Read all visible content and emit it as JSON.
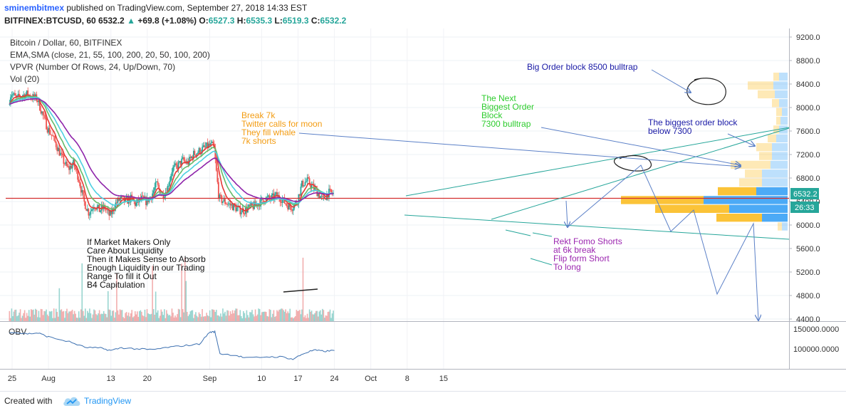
{
  "header": {
    "author": "sminembitmex",
    "published": "published on TradingView.com, September 27, 2018 14:33 EST",
    "symbol": "BITFINEX:BTCUSD, 60",
    "price": "6532.2",
    "change": "+69.8 (+1.08%)",
    "o_label": "O:",
    "o": "6527.3",
    "h_label": "H:",
    "h": "6535.3",
    "l_label": "L:",
    "l": "6519.3",
    "c_label": "C:",
    "c": "6532.2"
  },
  "legend": {
    "title": "Bitcoin / Dollar, 60, BITFINEX",
    "ema": "EMA,SMA (close, 21, 55, 100, 200, 20, 50, 100, 200)",
    "vpvr": "VPVR (Number Of Rows, 24, Up/Down, 70)",
    "vol": "Vol (20)",
    "obv": "OBV"
  },
  "price_badge": "6532.2",
  "countdown_badge": "26:33",
  "annotations": {
    "big_order": "Big Order block 8500 bulltrap",
    "next_biggest": [
      "The Next",
      "Biggest Order",
      "Block",
      "7300 bulltrap"
    ],
    "break7k": [
      "Break 7k",
      "Twitter calls for moon",
      "They fill whale",
      "7k shorts"
    ],
    "biggest_block": [
      "The biggest order block",
      "below 7300"
    ],
    "rekt": [
      "Rekt Fomo Shorts",
      "at 6k break",
      "Flip form Short",
      "To long"
    ],
    "market_makers": [
      "If Market Makers Only",
      "Care About Liquidity",
      "Then it Makes Sense to Absorb",
      "Enough Liquidity in our Trading",
      "Range To fill it Out",
      "B4 Capitulation"
    ]
  },
  "footer": {
    "created_with": "Created with",
    "brand": "TradingView"
  },
  "colors": {
    "up": "#26a69a",
    "down": "#ef5350",
    "ema21": "#e53935",
    "ema55": "#66bb6a",
    "ema100": "#4dd0e1",
    "ema200": "#8e24aa",
    "hline": "#d32f2f",
    "vp_blue": "#42a5f5",
    "vp_yellow": "#fbc02d",
    "obv": "#3b6fb0",
    "arrow": "#5b80c7"
  },
  "chart_data": {
    "type": "line",
    "x_ticks": [
      {
        "label": "25",
        "day": 25
      },
      {
        "label": "Aug",
        "day": 32
      },
      {
        "label": "13",
        "day": 44
      },
      {
        "label": "20",
        "day": 51
      },
      {
        "label": "Sep",
        "day": 63
      },
      {
        "label": "10",
        "day": 73
      },
      {
        "label": "17",
        "day": 80
      },
      {
        "label": "24",
        "day": 87
      },
      {
        "label": "Oct",
        "day": 94
      },
      {
        "label": "8",
        "day": 101
      },
      {
        "label": "15",
        "day": 108
      }
    ],
    "y_ticks": [
      9200,
      8800,
      8400,
      8000,
      7600,
      7200,
      6800,
      6400,
      6000,
      5600,
      5200,
      4800,
      4400
    ],
    "y_tick_labels": [
      "9200.0",
      "8800.0",
      "8400.0",
      "8000.0",
      "7600.0",
      "7200.0",
      "6800.0",
      "6400.0",
      "6000.0",
      "5600.0",
      "5200.0",
      "4800.0",
      "4400.0"
    ],
    "ylim": [
      4400,
      9350
    ],
    "price_series": [
      {
        "day": 24.5,
        "value": 8050
      },
      {
        "day": 25,
        "value": 8250
      },
      {
        "day": 26,
        "value": 8150
      },
      {
        "day": 27,
        "value": 8200
      },
      {
        "day": 28,
        "value": 8230
      },
      {
        "day": 29,
        "value": 8180
      },
      {
        "day": 30,
        "value": 8150
      },
      {
        "day": 31,
        "value": 7900
      },
      {
        "day": 32,
        "value": 7650
      },
      {
        "day": 33,
        "value": 7500
      },
      {
        "day": 34,
        "value": 7300
      },
      {
        "day": 35,
        "value": 7100
      },
      {
        "day": 36,
        "value": 6950
      },
      {
        "day": 37,
        "value": 7050
      },
      {
        "day": 38,
        "value": 6800
      },
      {
        "day": 39,
        "value": 6400
      },
      {
        "day": 40,
        "value": 6200
      },
      {
        "day": 41,
        "value": 6350
      },
      {
        "day": 42,
        "value": 6250
      },
      {
        "day": 43,
        "value": 6300
      },
      {
        "day": 44,
        "value": 6150
      },
      {
        "day": 45,
        "value": 6350
      },
      {
        "day": 46,
        "value": 6450
      },
      {
        "day": 47,
        "value": 6400
      },
      {
        "day": 48,
        "value": 6450
      },
      {
        "day": 49,
        "value": 6350
      },
      {
        "day": 50,
        "value": 6450
      },
      {
        "day": 51,
        "value": 6400
      },
      {
        "day": 52,
        "value": 6500
      },
      {
        "day": 53,
        "value": 6700
      },
      {
        "day": 54,
        "value": 6500
      },
      {
        "day": 55,
        "value": 6600
      },
      {
        "day": 56,
        "value": 6950
      },
      {
        "day": 57,
        "value": 7000
      },
      {
        "day": 58,
        "value": 7100
      },
      {
        "day": 59,
        "value": 7050
      },
      {
        "day": 60,
        "value": 7200
      },
      {
        "day": 61,
        "value": 7250
      },
      {
        "day": 62,
        "value": 7300
      },
      {
        "day": 63,
        "value": 7350
      },
      {
        "day": 64,
        "value": 7350
      },
      {
        "day": 65,
        "value": 6450
      },
      {
        "day": 66,
        "value": 6400
      },
      {
        "day": 67,
        "value": 6350
      },
      {
        "day": 68,
        "value": 6300
      },
      {
        "day": 69,
        "value": 6250
      },
      {
        "day": 70,
        "value": 6250
      },
      {
        "day": 71,
        "value": 6300
      },
      {
        "day": 72,
        "value": 6330
      },
      {
        "day": 73,
        "value": 6400
      },
      {
        "day": 74,
        "value": 6450
      },
      {
        "day": 75,
        "value": 6450
      },
      {
        "day": 76,
        "value": 6500
      },
      {
        "day": 77,
        "value": 6450
      },
      {
        "day": 78,
        "value": 6350
      },
      {
        "day": 79,
        "value": 6300
      },
      {
        "day": 80,
        "value": 6400
      },
      {
        "day": 81,
        "value": 6700
      },
      {
        "day": 82,
        "value": 6750
      },
      {
        "day": 83,
        "value": 6650
      },
      {
        "day": 84,
        "value": 6550
      },
      {
        "day": 85,
        "value": 6420
      },
      {
        "day": 86,
        "value": 6550
      },
      {
        "day": 87,
        "value": 6532
      }
    ],
    "volume_profile": [
      {
        "price": 8525,
        "up": 12,
        "down": 8
      },
      {
        "price": 8375,
        "up": 20,
        "down": 36
      },
      {
        "price": 8225,
        "up": 18,
        "down": 24
      },
      {
        "price": 8075,
        "up": 12,
        "down": 10
      },
      {
        "price": 7925,
        "up": 8,
        "down": 8
      },
      {
        "price": 7775,
        "up": 10,
        "down": 6
      },
      {
        "price": 7625,
        "up": 12,
        "down": 8
      },
      {
        "price": 7475,
        "up": 16,
        "down": 12
      },
      {
        "price": 7325,
        "up": 22,
        "down": 22
      },
      {
        "price": 7175,
        "up": 22,
        "down": 18
      },
      {
        "price": 7025,
        "up": 24,
        "down": 56
      },
      {
        "price": 6875,
        "up": 36,
        "down": 24
      },
      {
        "price": 6725,
        "up": 36,
        "down": 32
      },
      {
        "price": 6575,
        "up": 44,
        "down": 54
      },
      {
        "price": 6425,
        "up": 118,
        "down": 116
      },
      {
        "price": 6275,
        "up": 82,
        "down": 104
      },
      {
        "price": 6125,
        "up": 36,
        "down": 64
      },
      {
        "price": 5975,
        "up": 8,
        "down": 6
      }
    ],
    "obv_ticks": [
      {
        "value": 150000,
        "label": "150000.0000"
      },
      {
        "value": 100000,
        "label": "100000.0000"
      }
    ],
    "obv_series": [
      {
        "day": 24.5,
        "value": 142000
      },
      {
        "day": 28,
        "value": 138000
      },
      {
        "day": 30,
        "value": 140000
      },
      {
        "day": 32,
        "value": 130000
      },
      {
        "day": 36,
        "value": 118000
      },
      {
        "day": 39,
        "value": 104000
      },
      {
        "day": 42,
        "value": 102000
      },
      {
        "day": 44,
        "value": 96000
      },
      {
        "day": 46,
        "value": 103000
      },
      {
        "day": 49,
        "value": 100000
      },
      {
        "day": 52,
        "value": 98000
      },
      {
        "day": 55,
        "value": 104000
      },
      {
        "day": 58,
        "value": 108000
      },
      {
        "day": 61,
        "value": 112000
      },
      {
        "day": 63,
        "value": 142000
      },
      {
        "day": 64,
        "value": 143000
      },
      {
        "day": 65,
        "value": 88000
      },
      {
        "day": 68,
        "value": 84000
      },
      {
        "day": 70,
        "value": 77000
      },
      {
        "day": 74,
        "value": 80000
      },
      {
        "day": 77,
        "value": 80000
      },
      {
        "day": 79,
        "value": 74000
      },
      {
        "day": 81,
        "value": 88000
      },
      {
        "day": 83,
        "value": 97000
      },
      {
        "day": 85,
        "value": 94000
      },
      {
        "day": 87,
        "value": 96000
      }
    ]
  }
}
